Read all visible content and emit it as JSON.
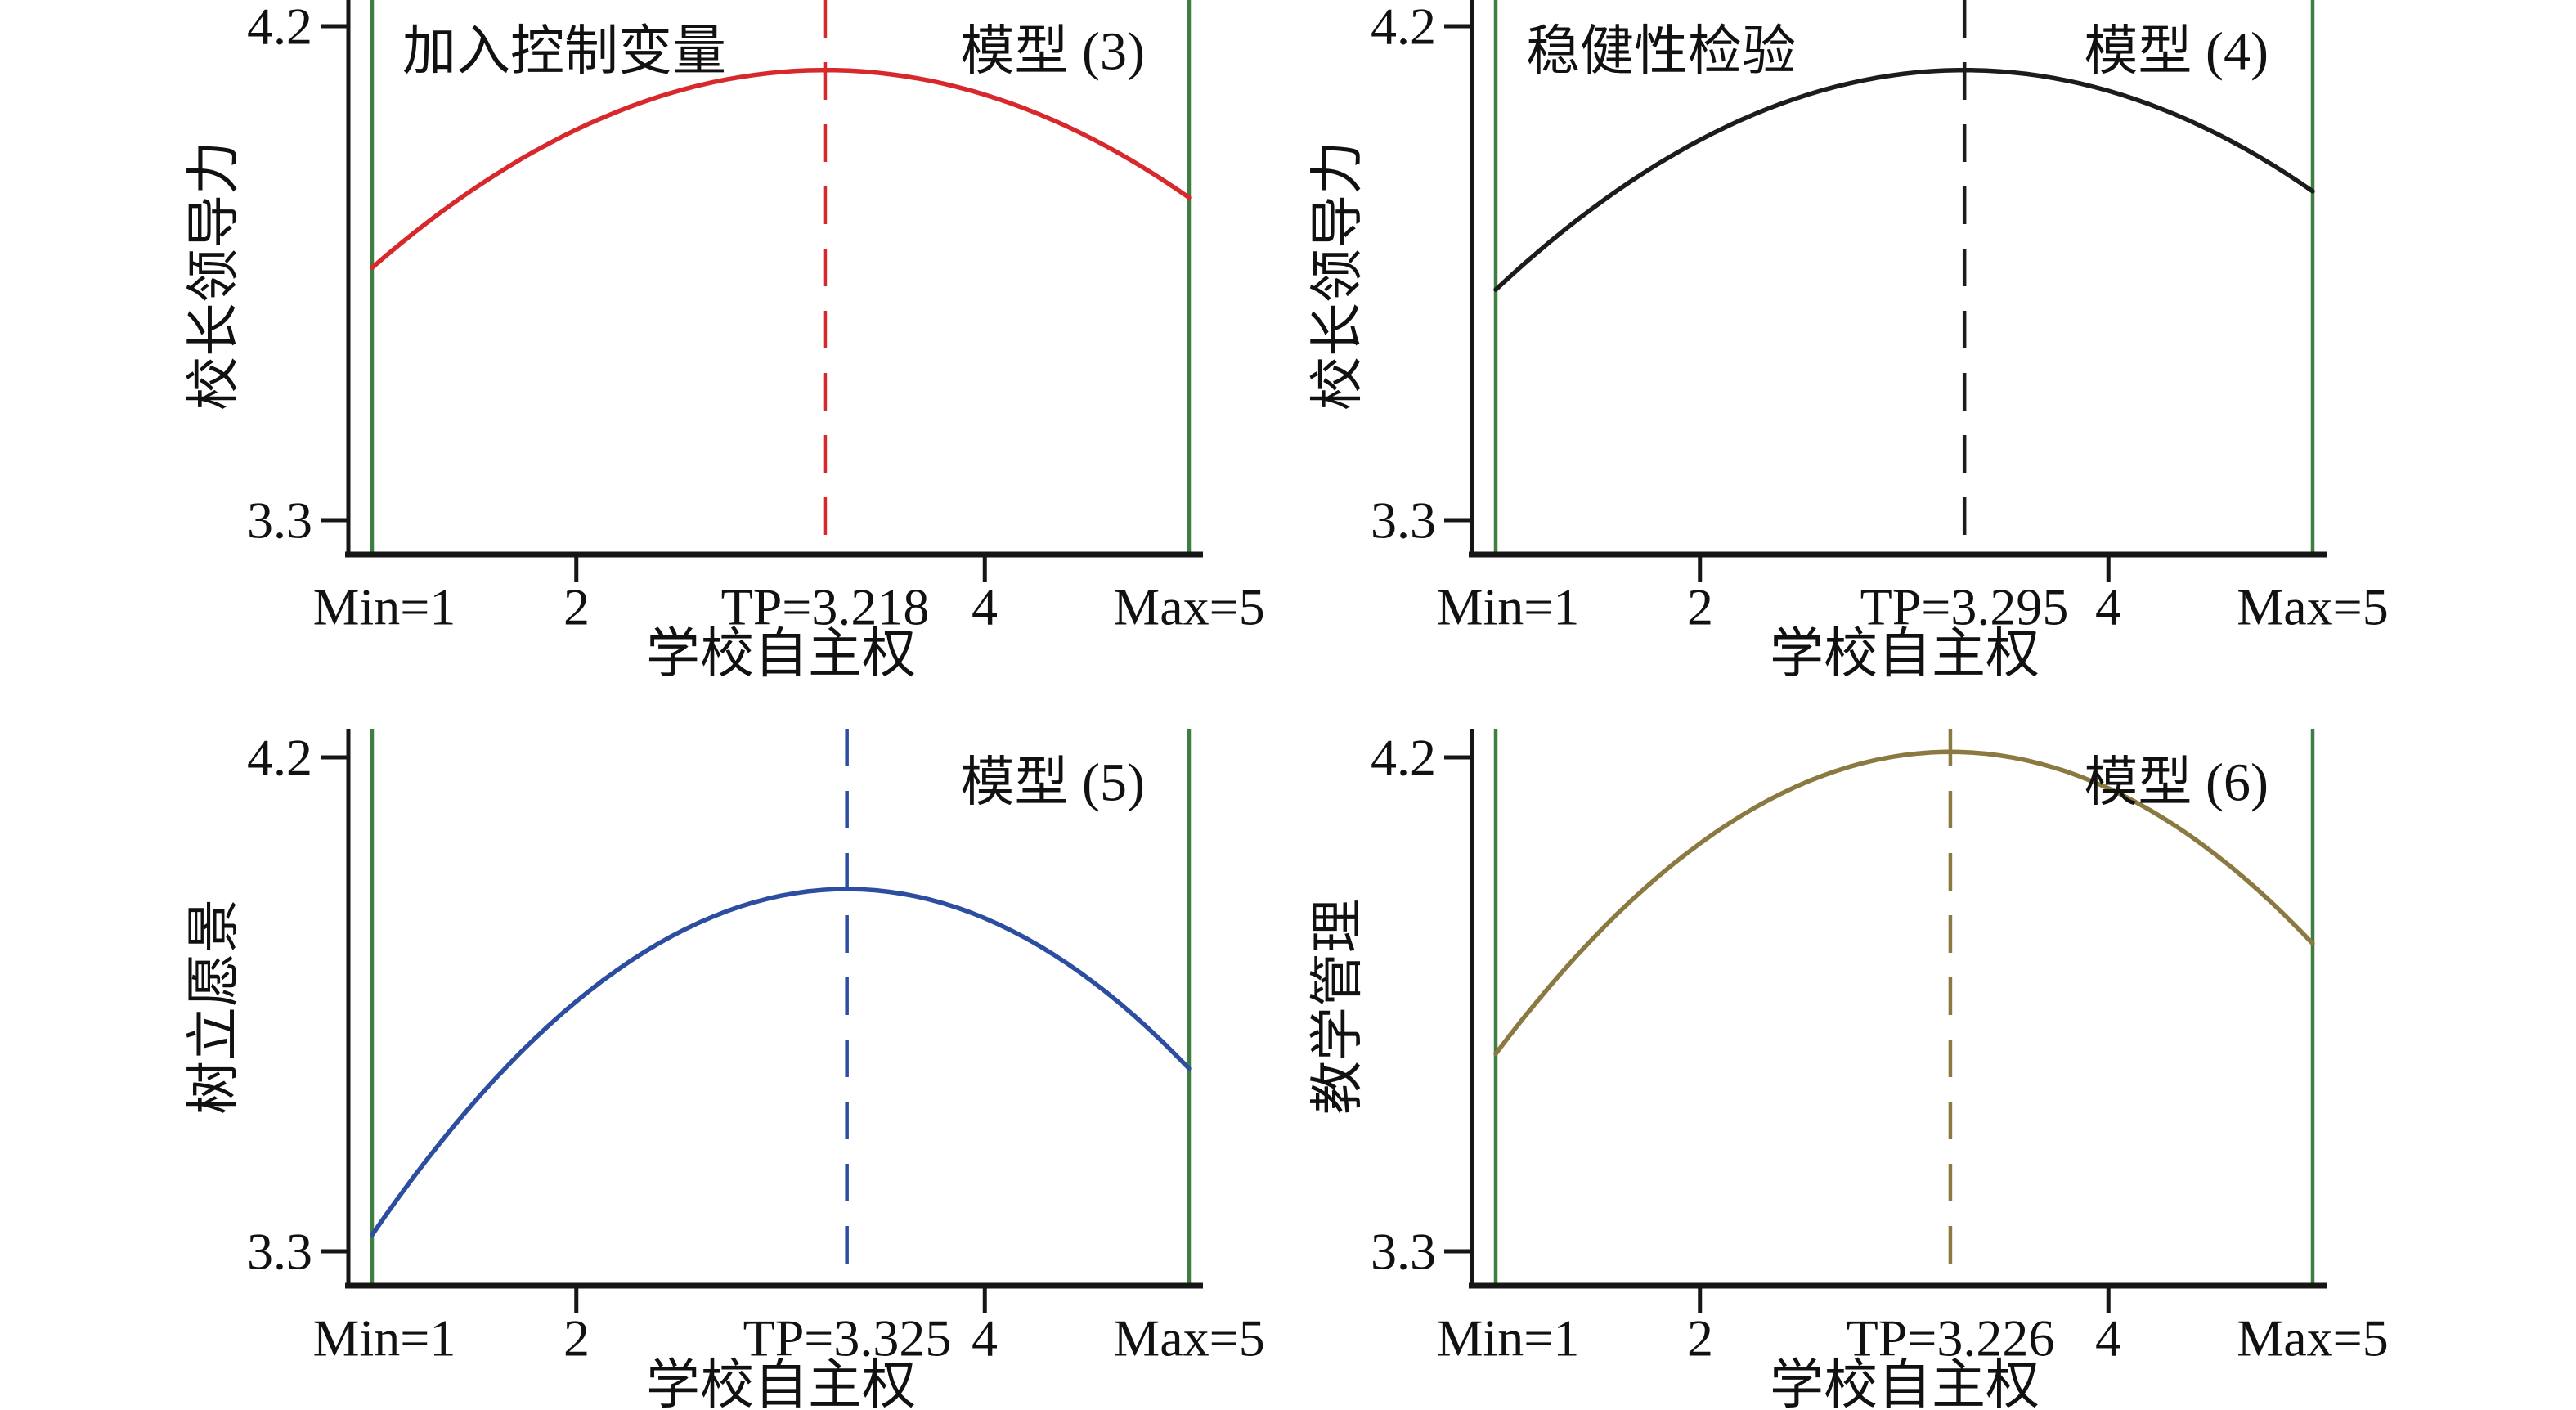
{
  "figure": {
    "background": "#ffffff",
    "description_labels": {
      "x_axis_title": "学校自主权",
      "y_tick_low": "3.3",
      "y_tick_high": "4.2"
    }
  },
  "chart_data": {
    "type": "line",
    "layout": "2x2-panels",
    "x_range": [
      1,
      5
    ],
    "y_tick_values": [
      3.3,
      4.2
    ],
    "grid": false,
    "panels": [
      {
        "model_label": "模型 (3)",
        "annotation": "加入控制变量",
        "ylabel": "校长领导力",
        "xlabel": "学校自主权",
        "turning_point": 3.218,
        "y_ticks": [
          {
            "value": 3.3,
            "label": "3.3"
          },
          {
            "value": 4.2,
            "label": "4.2"
          }
        ],
        "x_ticks": [
          {
            "value": 1,
            "label": "Min=1",
            "tick_mark": false
          },
          {
            "value": 2,
            "label": "2",
            "tick_mark": true
          },
          {
            "value": 3.218,
            "label": "TP=3.218",
            "tick_mark": false
          },
          {
            "value": 4,
            "label": "4",
            "tick_mark": true
          },
          {
            "value": 5,
            "label": "Max=5",
            "tick_mark": false
          }
        ],
        "curve": {
          "shape": "inverted-u-parabola",
          "vertex_x": 3.218,
          "vertex_y": 4.12,
          "y_at_x1": 3.76,
          "y_at_x5": 3.89,
          "color": "#d7282c"
        },
        "tp_line": {
          "x": 3.218,
          "style": "dashed",
          "color": "#d7282c"
        },
        "ref_lines": {
          "x": [
            1,
            5
          ],
          "color": "#3f7e41"
        }
      },
      {
        "model_label": "模型 (4)",
        "annotation": "稳健性检验",
        "ylabel": "校长领导力",
        "xlabel": "学校自主权",
        "turning_point": 3.295,
        "y_ticks": [
          {
            "value": 3.3,
            "label": "3.3"
          },
          {
            "value": 4.2,
            "label": "4.2"
          }
        ],
        "x_ticks": [
          {
            "value": 1,
            "label": "Min=1",
            "tick_mark": false
          },
          {
            "value": 2,
            "label": "2",
            "tick_mark": true
          },
          {
            "value": 3.295,
            "label": "TP=3.295",
            "tick_mark": false
          },
          {
            "value": 4,
            "label": "4",
            "tick_mark": true
          },
          {
            "value": 5,
            "label": "Max=5",
            "tick_mark": false
          }
        ],
        "curve": {
          "shape": "inverted-u-parabola",
          "vertex_x": 3.295,
          "vertex_y": 4.12,
          "y_at_x1": 3.72,
          "y_at_x5": 3.9,
          "color": "#1c1c1c"
        },
        "tp_line": {
          "x": 3.295,
          "style": "dashed",
          "color": "#1c1c1c"
        },
        "ref_lines": {
          "x": [
            1,
            5
          ],
          "color": "#3f7e41"
        }
      },
      {
        "model_label": "模型 (5)",
        "annotation": null,
        "ylabel": "树立愿景",
        "xlabel": "学校自主权",
        "turning_point": 3.325,
        "y_ticks": [
          {
            "value": 3.3,
            "label": "3.3"
          },
          {
            "value": 4.2,
            "label": "4.2"
          }
        ],
        "x_ticks": [
          {
            "value": 1,
            "label": "Min=1",
            "tick_mark": false
          },
          {
            "value": 2,
            "label": "2",
            "tick_mark": true
          },
          {
            "value": 3.325,
            "label": "TP=3.325",
            "tick_mark": false
          },
          {
            "value": 4,
            "label": "4",
            "tick_mark": true
          },
          {
            "value": 5,
            "label": "Max=5",
            "tick_mark": false
          }
        ],
        "curve": {
          "shape": "inverted-u-parabola",
          "vertex_x": 3.325,
          "vertex_y": 3.96,
          "y_at_x1": 3.33,
          "y_at_x5": 3.63,
          "color": "#2c4da0"
        },
        "tp_line": {
          "x": 3.325,
          "style": "dashed",
          "color": "#2c4da0"
        },
        "ref_lines": {
          "x": [
            1,
            5
          ],
          "color": "#3f7e41"
        }
      },
      {
        "model_label": "模型 (6)",
        "annotation": null,
        "ylabel": "教学管理",
        "xlabel": "学校自主权",
        "turning_point": 3.226,
        "y_ticks": [
          {
            "value": 3.3,
            "label": "3.3"
          },
          {
            "value": 4.2,
            "label": "4.2"
          }
        ],
        "x_ticks": [
          {
            "value": 1,
            "label": "Min=1",
            "tick_mark": false
          },
          {
            "value": 2,
            "label": "2",
            "tick_mark": true
          },
          {
            "value": 3.226,
            "label": "TP=3.226",
            "tick_mark": false
          },
          {
            "value": 4,
            "label": "4",
            "tick_mark": true
          },
          {
            "value": 5,
            "label": "Max=5",
            "tick_mark": false
          }
        ],
        "curve": {
          "shape": "inverted-u-parabola",
          "vertex_x": 3.226,
          "vertex_y": 4.21,
          "y_at_x1": 3.66,
          "y_at_x5": 3.86,
          "color": "#8a7a42"
        },
        "tp_line": {
          "x": 3.226,
          "style": "dashed",
          "color": "#8a7a42"
        },
        "ref_lines": {
          "x": [
            1,
            5
          ],
          "color": "#3f7e41"
        }
      }
    ],
    "colors": {
      "ref_line_green": "#3f7e41",
      "axis": "#161616",
      "panel3_red": "#d7282c",
      "panel4_black": "#1c1c1c",
      "panel5_navy": "#2c4da0",
      "panel6_olive": "#8a7a42"
    }
  }
}
